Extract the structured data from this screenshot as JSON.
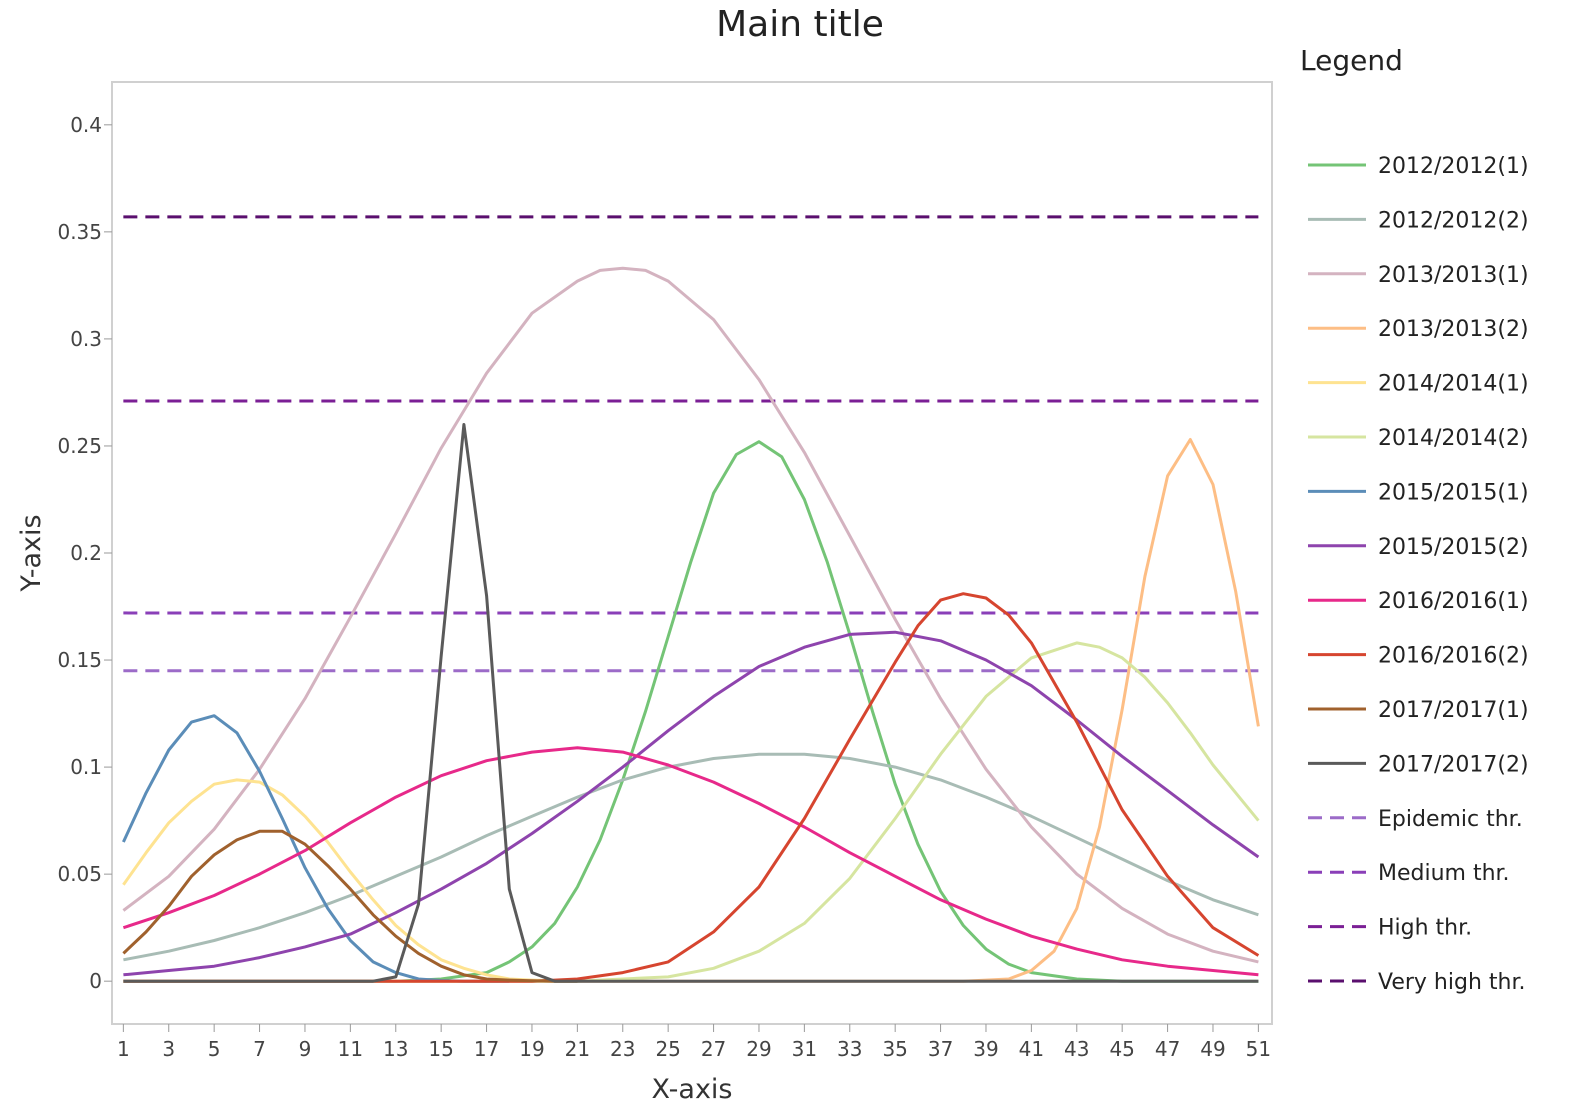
{
  "chart_data": {
    "type": "line",
    "title": "Main title",
    "xlabel": "X-axis",
    "ylabel": "Y-axis",
    "legend_title": "Legend",
    "legend_position": "right",
    "grid": false,
    "xlim": [
      0.5,
      51.6
    ],
    "ylim": [
      -0.02,
      0.42
    ],
    "x_ticks": [
      1,
      3,
      5,
      7,
      9,
      11,
      13,
      15,
      17,
      19,
      21,
      23,
      25,
      27,
      29,
      31,
      33,
      35,
      37,
      39,
      41,
      43,
      45,
      47,
      49,
      51
    ],
    "y_ticks": [
      {
        "value": 0,
        "label": "0"
      },
      {
        "value": 0.05,
        "label": "0.05"
      },
      {
        "value": 0.1,
        "label": "0.1"
      },
      {
        "value": 0.15,
        "label": "0.15"
      },
      {
        "value": 0.2,
        "label": "0.2"
      },
      {
        "value": 0.25,
        "label": "0.25"
      },
      {
        "value": 0.3,
        "label": "0.3"
      },
      {
        "value": 0.35,
        "label": "0.35"
      },
      {
        "value": 0.4,
        "label": "0.4"
      }
    ],
    "series": [
      {
        "name": "2012/2012(1)",
        "color": "#74c476",
        "x": [
          1,
          13,
          15,
          17,
          18,
          19,
          20,
          21,
          22,
          23,
          24,
          25,
          26,
          27,
          28,
          29,
          30,
          31,
          32,
          33,
          34,
          35,
          36,
          37,
          38,
          39,
          40,
          41,
          43,
          45,
          51
        ],
        "y": [
          0,
          0,
          0.001,
          0.004,
          0.009,
          0.016,
          0.027,
          0.044,
          0.066,
          0.094,
          0.126,
          0.161,
          0.196,
          0.228,
          0.246,
          0.252,
          0.245,
          0.225,
          0.196,
          0.162,
          0.126,
          0.092,
          0.064,
          0.042,
          0.026,
          0.015,
          0.008,
          0.004,
          0.001,
          0,
          0
        ]
      },
      {
        "name": "2012/2012(2)",
        "color": "#a8bcb5",
        "x": [
          1,
          3,
          5,
          7,
          9,
          11,
          13,
          15,
          17,
          19,
          21,
          23,
          25,
          27,
          29,
          31,
          33,
          35,
          37,
          39,
          41,
          43,
          45,
          47,
          49,
          51
        ],
        "y": [
          0.01,
          0.014,
          0.019,
          0.025,
          0.032,
          0.04,
          0.049,
          0.058,
          0.068,
          0.077,
          0.086,
          0.094,
          0.1,
          0.104,
          0.106,
          0.106,
          0.104,
          0.1,
          0.094,
          0.086,
          0.077,
          0.067,
          0.057,
          0.047,
          0.038,
          0.031
        ]
      },
      {
        "name": "2013/2013(1)",
        "color": "#d4b3c0",
        "x": [
          1,
          3,
          5,
          7,
          9,
          11,
          13,
          15,
          17,
          19,
          21,
          22,
          23,
          24,
          25,
          27,
          29,
          31,
          33,
          35,
          37,
          39,
          41,
          43,
          45,
          47,
          49,
          51
        ],
        "y": [
          0.033,
          0.049,
          0.071,
          0.099,
          0.132,
          0.17,
          0.209,
          0.249,
          0.284,
          0.312,
          0.327,
          0.332,
          0.333,
          0.332,
          0.327,
          0.309,
          0.281,
          0.247,
          0.208,
          0.169,
          0.132,
          0.099,
          0.072,
          0.05,
          0.034,
          0.022,
          0.014,
          0.009
        ]
      },
      {
        "name": "2013/2013(2)",
        "color": "#fdbe85",
        "x": [
          1,
          38,
          40,
          41,
          42,
          43,
          44,
          45,
          46,
          47,
          48,
          49,
          50,
          51
        ],
        "y": [
          0,
          0,
          0.001,
          0.005,
          0.014,
          0.034,
          0.072,
          0.127,
          0.189,
          0.236,
          0.253,
          0.232,
          0.182,
          0.119
        ]
      },
      {
        "name": "2014/2014(1)",
        "color": "#fee391",
        "x": [
          1,
          2,
          3,
          4,
          5,
          6,
          7,
          8,
          9,
          10,
          11,
          12,
          13,
          14,
          15,
          16,
          17,
          18,
          19,
          20,
          21
        ],
        "y": [
          0.045,
          0.06,
          0.074,
          0.084,
          0.092,
          0.094,
          0.093,
          0.087,
          0.077,
          0.065,
          0.051,
          0.038,
          0.026,
          0.017,
          0.01,
          0.006,
          0.003,
          0.001,
          0.0005,
          0.0002,
          0
        ]
      },
      {
        "name": "2014/2014(2)",
        "color": "#d6e5a0",
        "x": [
          1,
          17,
          21,
          23,
          25,
          27,
          29,
          31,
          33,
          35,
          37,
          39,
          41,
          43,
          44,
          45,
          46,
          47,
          48,
          49,
          50,
          51
        ],
        "y": [
          0,
          0,
          0,
          0.001,
          0.002,
          0.006,
          0.014,
          0.027,
          0.048,
          0.076,
          0.106,
          0.133,
          0.151,
          0.158,
          0.156,
          0.151,
          0.142,
          0.13,
          0.116,
          0.101,
          0.088,
          0.075
        ]
      },
      {
        "name": "2015/2015(1)",
        "color": "#5b8db8",
        "x": [
          1,
          2,
          3,
          4,
          5,
          6,
          7,
          8,
          9,
          10,
          11,
          12,
          13,
          14,
          15,
          16,
          17,
          18
        ],
        "y": [
          0.065,
          0.088,
          0.108,
          0.121,
          0.124,
          0.116,
          0.098,
          0.076,
          0.053,
          0.034,
          0.019,
          0.009,
          0.004,
          0.001,
          0.0003,
          0,
          0,
          0
        ]
      },
      {
        "name": "2015/2015(2)",
        "color": "#8e44ad",
        "x": [
          1,
          3,
          5,
          7,
          9,
          11,
          13,
          15,
          17,
          19,
          21,
          23,
          25,
          27,
          29,
          31,
          33,
          35,
          37,
          39,
          41,
          43,
          45,
          47,
          49,
          51
        ],
        "y": [
          0.003,
          0.005,
          0.007,
          0.011,
          0.016,
          0.022,
          0.032,
          0.043,
          0.055,
          0.069,
          0.084,
          0.1,
          0.117,
          0.133,
          0.147,
          0.156,
          0.162,
          0.163,
          0.159,
          0.15,
          0.138,
          0.122,
          0.105,
          0.089,
          0.073,
          0.058
        ]
      },
      {
        "name": "2016/2016(1)",
        "color": "#e7298a",
        "x": [
          1,
          3,
          5,
          7,
          9,
          11,
          13,
          15,
          17,
          19,
          21,
          23,
          25,
          27,
          29,
          31,
          33,
          35,
          37,
          39,
          41,
          43,
          45,
          47,
          49,
          51
        ],
        "y": [
          0.025,
          0.032,
          0.04,
          0.05,
          0.061,
          0.074,
          0.086,
          0.096,
          0.103,
          0.107,
          0.109,
          0.107,
          0.101,
          0.093,
          0.083,
          0.072,
          0.06,
          0.049,
          0.038,
          0.029,
          0.021,
          0.015,
          0.01,
          0.007,
          0.005,
          0.003
        ]
      },
      {
        "name": "2016/2016(2)",
        "color": "#d6452f",
        "x": [
          1,
          13,
          15,
          17,
          19,
          21,
          23,
          25,
          27,
          29,
          31,
          33,
          35,
          36,
          37,
          38,
          39,
          40,
          41,
          43,
          45,
          47,
          49,
          51
        ],
        "y": [
          0,
          0,
          0,
          0,
          0,
          0.001,
          0.004,
          0.009,
          0.023,
          0.044,
          0.076,
          0.113,
          0.149,
          0.166,
          0.178,
          0.181,
          0.179,
          0.171,
          0.158,
          0.121,
          0.08,
          0.049,
          0.025,
          0.012
        ]
      },
      {
        "name": "2017/2017(1)",
        "color": "#a0612d",
        "x": [
          1,
          2,
          3,
          4,
          5,
          6,
          7,
          8,
          9,
          10,
          11,
          12,
          13,
          14,
          15,
          16,
          17,
          18,
          19,
          20,
          21
        ],
        "y": [
          0.013,
          0.023,
          0.035,
          0.049,
          0.059,
          0.066,
          0.07,
          0.07,
          0.064,
          0.054,
          0.043,
          0.031,
          0.021,
          0.013,
          0.007,
          0.003,
          0.001,
          0.0005,
          0.0002,
          0,
          0
        ]
      },
      {
        "name": "2017/2017(2)",
        "color": "#5a5a5a",
        "x": [
          1,
          12,
          13,
          14,
          15,
          16,
          17,
          18,
          19,
          20,
          51
        ],
        "y": [
          0,
          0,
          0.002,
          0.036,
          0.152,
          0.26,
          0.18,
          0.043,
          0.004,
          0,
          0
        ]
      }
    ],
    "thresholds": [
      {
        "name": "Epidemic thr.",
        "value": 0.145,
        "color": "#9c6bc8"
      },
      {
        "name": "Medium thr.",
        "value": 0.172,
        "color": "#8a3fb8"
      },
      {
        "name": "High thr.",
        "value": 0.271,
        "color": "#7b1f95"
      },
      {
        "name": "Very high thr.",
        "value": 0.357,
        "color": "#5a0f6e"
      }
    ]
  }
}
